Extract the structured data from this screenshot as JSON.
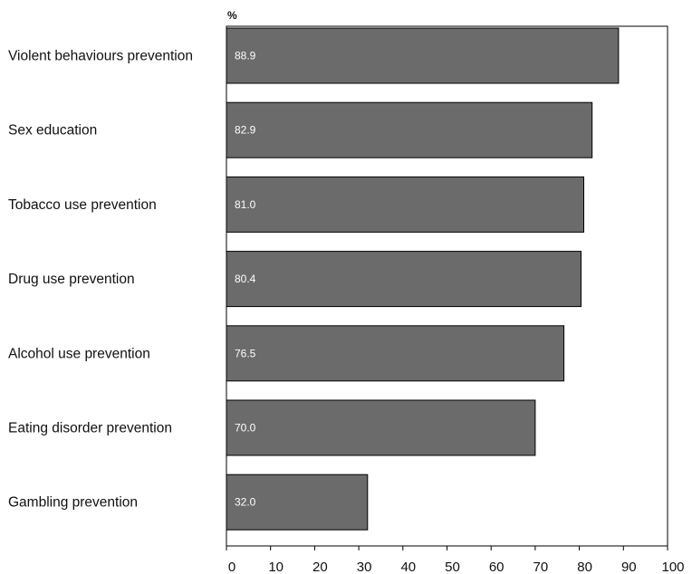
{
  "chart_data": {
    "type": "bar",
    "orientation": "horizontal",
    "unit_label": "%",
    "categories": [
      "Violent behaviours prevention",
      "Sex education",
      "Tobacco use prevention",
      "Drug use prevention",
      "Alcohol use prevention",
      "Eating disorder prevention",
      "Gambling prevention"
    ],
    "values": [
      88.9,
      82.9,
      81.0,
      80.4,
      76.5,
      70.0,
      32.0
    ],
    "value_labels": [
      "88.9",
      "82.9",
      "81.0",
      "80.4",
      "76.5",
      "70.0",
      "32.0"
    ],
    "xlim": [
      0,
      100
    ],
    "x_ticks": [
      0,
      10,
      20,
      30,
      40,
      50,
      60,
      70,
      80,
      90,
      100
    ],
    "grid": false,
    "colors": {
      "bar_fill": "#6b6b6b",
      "bar_stroke": "#000000",
      "value_text": "#ffffff"
    }
  }
}
